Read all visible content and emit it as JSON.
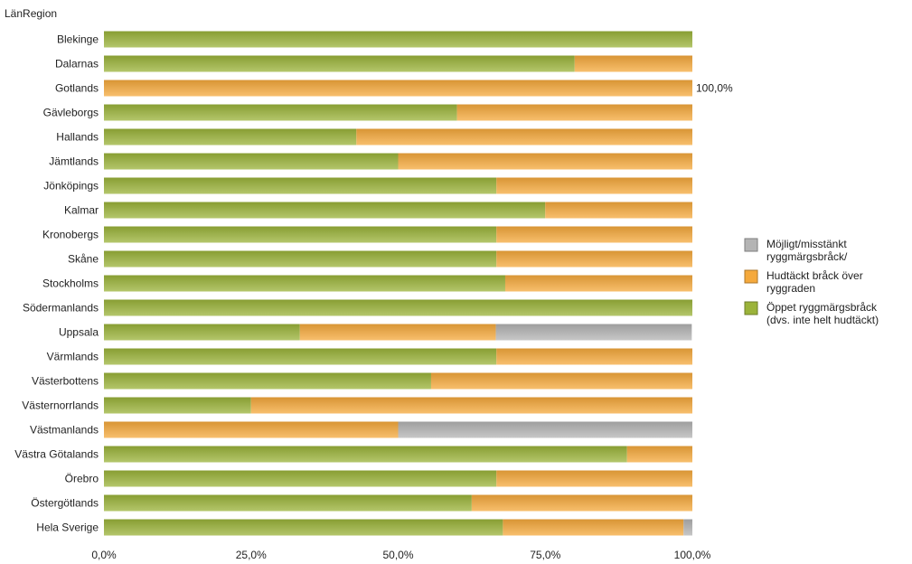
{
  "chart_data": {
    "type": "bar",
    "orientation": "horizontal",
    "stacked": true,
    "y_axis_title": "LänRegion",
    "categories": [
      "Blekinge",
      "Dalarnas",
      "Gotlands",
      "Gävleborgs",
      "Hallands",
      "Jämtlands",
      "Jönköpings",
      "Kalmar",
      "Kronobergs",
      "Skåne",
      "Stockholms",
      "Södermanlands",
      "Uppsala",
      "Värmlands",
      "Västerbottens",
      "Västernorrlands",
      "Västmanlands",
      "Västra Götalands",
      "Örebro",
      "Östergötlands",
      "Hela Sverige"
    ],
    "series": [
      {
        "name": "Öppet ryggmärgsbråck (dvs. inte helt hudtäckt)",
        "legend_lines": [
          "Öppet ryggmärgsbråck",
          "(dvs. inte helt hudtäckt)"
        ],
        "color": "#9bb33a",
        "values": [
          100,
          80,
          0,
          60,
          42.9,
          50,
          66.7,
          75,
          66.7,
          66.7,
          68.2,
          100,
          33.3,
          66.7,
          55.6,
          25,
          0,
          88.9,
          66.7,
          62.5,
          67.8
        ]
      },
      {
        "name": "Hudtäckt bråck över ryggraden",
        "legend_lines": [
          "Hudtäckt bråck över",
          "ryggraden"
        ],
        "color": "#f5a93c",
        "values": [
          0,
          20,
          100,
          40,
          57.1,
          50,
          33.3,
          25,
          33.3,
          33.3,
          31.8,
          0,
          33.3,
          33.3,
          44.4,
          75,
          50,
          11.1,
          33.3,
          37.5,
          30.7
        ]
      },
      {
        "name": "Möjligt/misstänkt ryggmärgsbråck/",
        "legend_lines": [
          "Möjligt/misstänkt",
          "ryggmärgsbråck/"
        ],
        "color": "#b4b4b4",
        "values": [
          0,
          0,
          0,
          0,
          0,
          0,
          0,
          0,
          0,
          0,
          0,
          0,
          33.3,
          0,
          0,
          0,
          50,
          0,
          0,
          0,
          1.5
        ]
      }
    ],
    "x_ticks": [
      "0,0%",
      "25,0%",
      "50,0%",
      "75,0%",
      "100,0%"
    ],
    "xlim": [
      0,
      100
    ],
    "data_labels": [
      {
        "category": "Gotlands",
        "text": "100,0%"
      }
    ],
    "legend_position": "right",
    "grid": false
  }
}
